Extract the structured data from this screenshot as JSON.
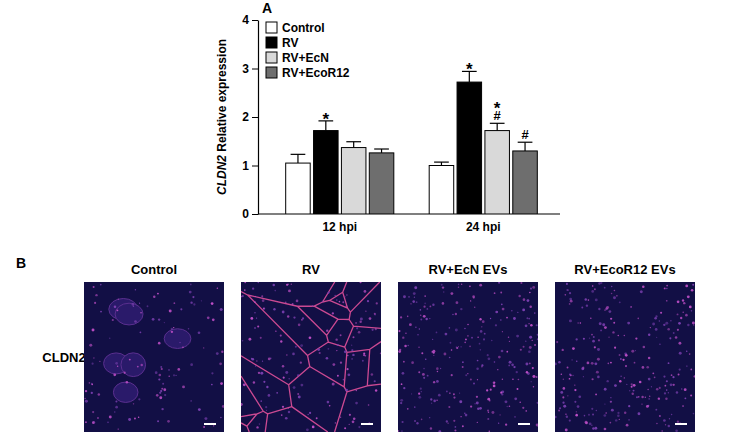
{
  "chart_data": {
    "type": "bar",
    "panel_label": "A",
    "y_label": "CLDN2 Relative expression",
    "categories": [
      "12 hpi",
      "24 hpi"
    ],
    "series": [
      {
        "name": "Control",
        "color": "#ffffff",
        "values": [
          1.05,
          1.0
        ],
        "errors": [
          0.18,
          0.07
        ],
        "significance": [
          [],
          []
        ]
      },
      {
        "name": "RV",
        "color": "#000000",
        "values": [
          1.72,
          2.72
        ],
        "errors": [
          0.2,
          0.22
        ],
        "significance": [
          [
            "*"
          ],
          [
            "*"
          ]
        ]
      },
      {
        "name": "RV+EcN",
        "color": "#d9d9d9",
        "values": [
          1.37,
          1.72
        ],
        "errors": [
          0.12,
          0.15
        ],
        "significance": [
          [],
          [
            "*",
            "#"
          ]
        ]
      },
      {
        "name": "RV+EcoR12",
        "color": "#6e6e6e",
        "values": [
          1.26,
          1.3
        ],
        "errors": [
          0.08,
          0.18
        ],
        "significance": [
          [],
          [
            "#"
          ]
        ]
      }
    ],
    "ylim": [
      0,
      4
    ],
    "yticks": [
      0,
      1,
      2,
      3,
      4
    ],
    "legend": "upper left",
    "grid": false
  },
  "image_panel": {
    "panel_label": "B",
    "row_label": "CLDN2",
    "columns": [
      "Control",
      "RV",
      "RV+EcN EVs",
      "RV+EcoR12 EVs"
    ]
  }
}
